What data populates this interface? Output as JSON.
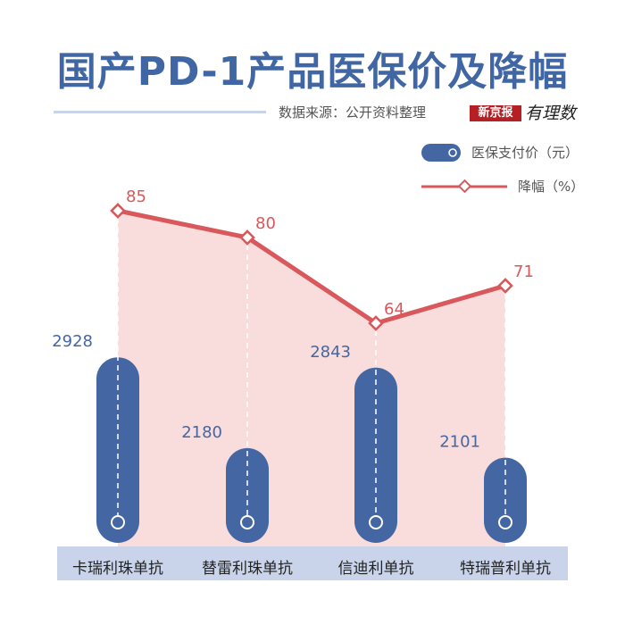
{
  "title": "国产PD-1产品医保价及降幅",
  "source": "数据来源：公开资料整理",
  "brand": {
    "name": "新京报",
    "sub": "有理数"
  },
  "legend": {
    "bar_label": "医保支付价（元）",
    "line_label": "降幅（%）"
  },
  "colors": {
    "bar": "#4467a3",
    "line": "#d8585b",
    "area": "#f9dcdc",
    "title": "#4066a3",
    "axis_band": "#c9d4ea"
  },
  "chart_data": {
    "type": "bar",
    "categories": [
      "卡瑞利珠单抗",
      "替雷利珠单抗",
      "信迪利单抗",
      "特瑞普利单抗"
    ],
    "series": [
      {
        "name": "医保支付价（元）",
        "type": "bar",
        "values": [
          2928,
          2180,
          2843,
          2101
        ]
      },
      {
        "name": "降幅（%）",
        "type": "line",
        "values": [
          85,
          80,
          64,
          71
        ]
      }
    ],
    "title": "国产PD-1产品医保价及降幅",
    "xlabel": "",
    "ylabel": "",
    "grid": false,
    "legend_position": "top-right"
  }
}
